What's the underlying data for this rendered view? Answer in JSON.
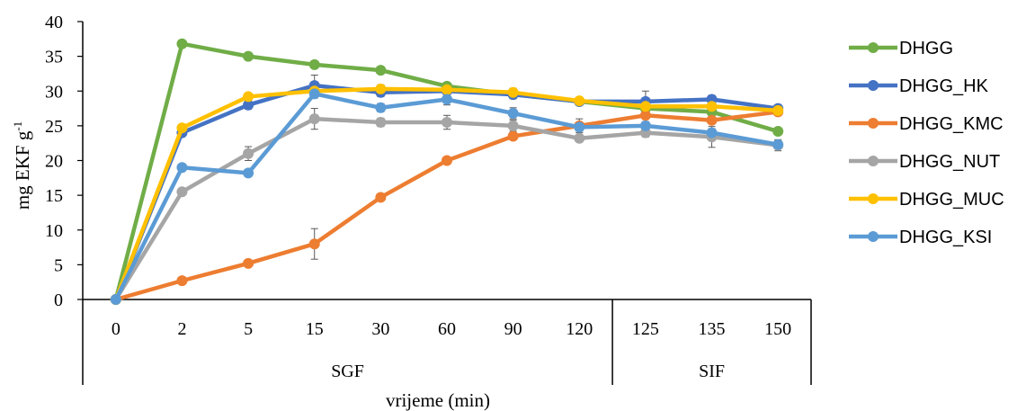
{
  "chart_data": {
    "type": "line",
    "xlabel": "vrijeme (min)",
    "ylabel": "mg EKF g",
    "ylabel_sup": "-1",
    "ylim": [
      0,
      40
    ],
    "yticks": [
      0,
      5,
      10,
      15,
      20,
      25,
      30,
      35,
      40
    ],
    "categories": [
      "0",
      "2",
      "5",
      "15",
      "30",
      "60",
      "90",
      "120",
      "125",
      "135",
      "150"
    ],
    "groups": [
      {
        "label": "SGF",
        "start": 0,
        "end": 7
      },
      {
        "label": "SIF",
        "start": 8,
        "end": 10
      }
    ],
    "grid": false,
    "legend_position": "right",
    "series": [
      {
        "name": "DHGG",
        "color": "#70ad47",
        "values": [
          0,
          36.8,
          35.0,
          33.8,
          33.0,
          30.7,
          29.5,
          28.5,
          27.5,
          27.0,
          24.2
        ],
        "errors": [
          0,
          0.3,
          0.3,
          0.4,
          0.4,
          0.4,
          0.5,
          0.5,
          0.6,
          0.5,
          0.4
        ]
      },
      {
        "name": "DHGG_HK",
        "color": "#4472c4",
        "values": [
          0,
          24.0,
          28.0,
          30.8,
          29.8,
          30.0,
          29.5,
          28.5,
          28.5,
          28.8,
          27.5
        ],
        "errors": [
          0,
          0.5,
          0.6,
          1.5,
          0.6,
          0.5,
          0.6,
          0.5,
          1.5,
          0.6,
          0.5
        ]
      },
      {
        "name": "DHGG_KMC",
        "color": "#ed7d31",
        "values": [
          0,
          2.7,
          5.2,
          8.0,
          14.7,
          20.0,
          23.5,
          25.0,
          26.5,
          25.8,
          27.0
        ],
        "errors": [
          0,
          0.2,
          0.3,
          2.2,
          0.3,
          0.3,
          0.4,
          1.0,
          0.5,
          0.5,
          0.4
        ]
      },
      {
        "name": "DHGG_NUT",
        "color": "#a5a5a5",
        "values": [
          0,
          15.5,
          21.0,
          26.0,
          25.5,
          25.5,
          25.0,
          23.2,
          24.0,
          23.4,
          22.2
        ],
        "errors": [
          0,
          0.5,
          1.0,
          1.5,
          0.6,
          1.0,
          0.8,
          0.5,
          0.6,
          1.5,
          0.8
        ]
      },
      {
        "name": "DHGG_MUC",
        "color": "#ffc000",
        "values": [
          0,
          24.7,
          29.2,
          30.0,
          30.3,
          30.2,
          29.8,
          28.6,
          27.8,
          27.8,
          27.2
        ],
        "errors": [
          0,
          0.4,
          0.5,
          0.5,
          0.6,
          0.5,
          0.6,
          0.5,
          0.5,
          0.5,
          0.5
        ]
      },
      {
        "name": "DHGG_KSI",
        "color": "#5b9bd5",
        "values": [
          0,
          19.0,
          18.2,
          29.6,
          27.6,
          28.8,
          26.8,
          24.8,
          25.0,
          24.0,
          22.3
        ],
        "errors": [
          0,
          0.4,
          0.5,
          0.6,
          0.6,
          0.8,
          0.8,
          0.6,
          0.6,
          0.6,
          0.5
        ]
      }
    ]
  }
}
